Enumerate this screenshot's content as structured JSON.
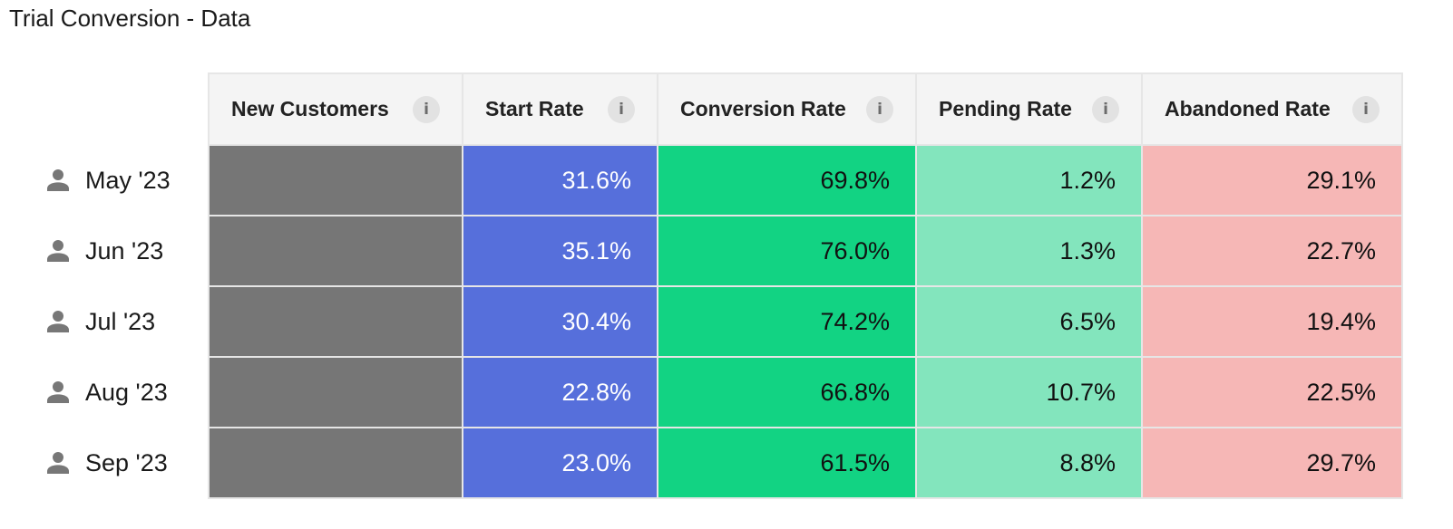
{
  "page": {
    "title": "Trial Conversion - Data"
  },
  "table": {
    "columns": [
      {
        "label": "New Customers",
        "info_icon": "info-icon"
      },
      {
        "label": "Start Rate",
        "info_icon": "info-icon"
      },
      {
        "label": "Conversion Rate",
        "info_icon": "info-icon"
      },
      {
        "label": "Pending Rate",
        "info_icon": "info-icon"
      },
      {
        "label": "Abandoned Rate",
        "info_icon": "info-icon"
      }
    ],
    "rows": [
      {
        "icon": "person-icon",
        "label": "May '23",
        "new_customers": "",
        "start_rate": "31.6%",
        "conversion_rate": "69.8%",
        "pending_rate": "1.2%",
        "abandoned_rate": "29.1%"
      },
      {
        "icon": "person-icon",
        "label": "Jun '23",
        "new_customers": "",
        "start_rate": "35.1%",
        "conversion_rate": "76.0%",
        "pending_rate": "1.3%",
        "abandoned_rate": "22.7%"
      },
      {
        "icon": "person-icon",
        "label": "Jul '23",
        "new_customers": "",
        "start_rate": "30.4%",
        "conversion_rate": "74.2%",
        "pending_rate": "6.5%",
        "abandoned_rate": "19.4%"
      },
      {
        "icon": "person-icon",
        "label": "Aug '23",
        "new_customers": "",
        "start_rate": "22.8%",
        "conversion_rate": "66.8%",
        "pending_rate": "10.7%",
        "abandoned_rate": "22.5%"
      },
      {
        "icon": "person-icon",
        "label": "Sep '23",
        "new_customers": "",
        "start_rate": "23.0%",
        "conversion_rate": "61.5%",
        "pending_rate": "8.8%",
        "abandoned_rate": "29.7%"
      }
    ]
  },
  "colors": {
    "new_customers": "#767676",
    "start_rate": "#566fdb",
    "conversion_rate": "#12d383",
    "pending_rate": "#83e5bd",
    "abandoned_rate": "#f6b7b6",
    "header_bg": "#f4f4f4"
  }
}
